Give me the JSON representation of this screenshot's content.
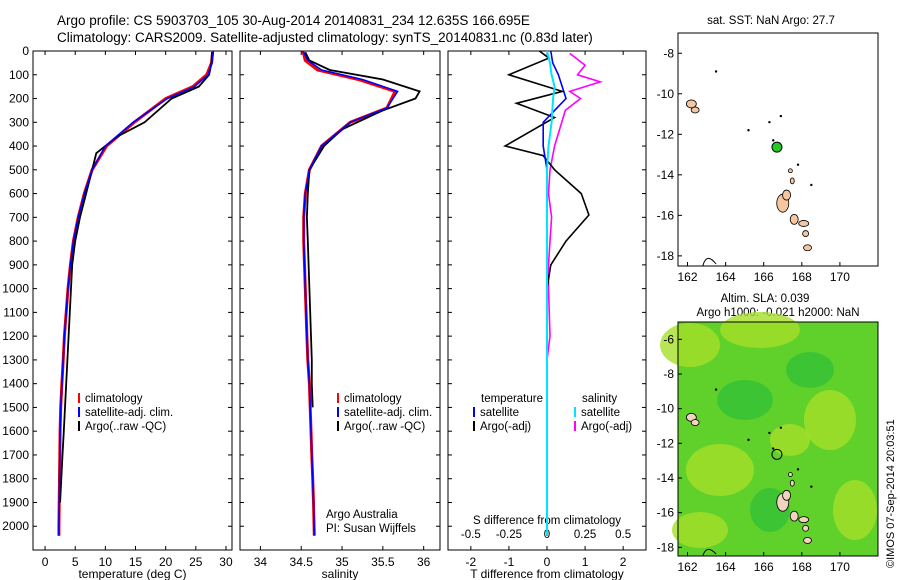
{
  "title_line1": "Argo profile: CS 5903703_105 30-Aug-2014 20140831_234 12.635S 166.695E",
  "title_line2": "Climatology: CARS2009. Satellite-adjusted climatology: synTS_20140831.nc (0.83d later)",
  "depth_ticks": [
    "0",
    "100",
    "200",
    "300",
    "400",
    "500",
    "600",
    "700",
    "800",
    "900",
    "1000",
    "1100",
    "1200",
    "1300",
    "1400",
    "1500",
    "1600",
    "1700",
    "1800",
    "1900",
    "2000"
  ],
  "legend_left": [
    "climatology",
    "satellite-adj. clim.",
    "Argo(..raw -QC)"
  ],
  "legend_mid": [
    "climatology",
    "satellite-adj. clim.",
    "Argo(..raw -QC)"
  ],
  "legend_diff": {
    "temperature": "temperature",
    "salinity": "salinity",
    "satellite": "satellite",
    "argo_adj": "Argo(-adj)"
  },
  "credit_line1": "Argo Australia",
  "credit_line2": "PI: Susan Wijffels",
  "s_diff_label": "S difference from climatology",
  "s_diff_ticks": [
    "-0.5",
    "-0.25",
    "0",
    "0.25",
    "0.5"
  ],
  "map_top_title": "sat. SST: NaN Argo: 27.7",
  "map_bottom_title1": "Altim. SLA: 0.039",
  "map_bottom_title2": "Argo h1000: -0.021 h2000: NaN",
  "footer_stamp": "©IMOS 07-Sep-2014 20:03:51",
  "colors": {
    "climatology": "#ff0000",
    "satellite": "#0000ff",
    "argo": "#000000",
    "sal_sat": "#00e5ff",
    "sal_argo": "#ff00ff",
    "land": "#f5c6a0",
    "sla_green": "#5fd12a"
  },
  "chart_data": [
    {
      "type": "line",
      "xlabel": "temperature (deg C)",
      "ylabel": "",
      "xlim": [
        -2,
        31
      ],
      "ylim": [
        2100,
        0
      ],
      "xticks": [
        0,
        5,
        10,
        15,
        20,
        25,
        30
      ],
      "series": [
        {
          "name": "climatology",
          "x": [
            27.8,
            27.6,
            26.8,
            24.5,
            20.0,
            14.8,
            10.2,
            7.8,
            6.5,
            5.5,
            4.7,
            4.2,
            3.8,
            3.5,
            3.2,
            3.0,
            2.8,
            2.6,
            2.5,
            2.45,
            2.4,
            2.35,
            2.3,
            2.3
          ],
          "y": [
            0,
            50,
            100,
            150,
            200,
            300,
            400,
            500,
            600,
            700,
            800,
            900,
            1000,
            1100,
            1200,
            1300,
            1400,
            1500,
            1600,
            1700,
            1800,
            1900,
            2000,
            2040
          ]
        },
        {
          "name": "satellite-adj. clim.",
          "x": [
            27.9,
            27.7,
            27.0,
            24.8,
            20.3,
            14.6,
            10.0,
            7.8,
            6.5,
            5.5,
            4.7,
            4.2,
            3.8,
            3.5,
            3.2,
            3.0,
            2.8,
            2.6,
            2.5,
            2.45,
            2.4,
            2.35,
            2.3,
            2.3
          ],
          "y": [
            0,
            50,
            100,
            150,
            200,
            300,
            400,
            500,
            600,
            700,
            800,
            900,
            1000,
            1100,
            1200,
            1300,
            1400,
            1500,
            1600,
            1700,
            1800,
            1900,
            2000,
            2040
          ]
        },
        {
          "name": "Argo(..raw -QC)",
          "x": [
            27.7,
            27.6,
            27.2,
            25.5,
            21.0,
            16.5,
            12.0,
            8.5,
            7.8,
            6.8,
            5.8,
            5.0,
            4.5,
            4.3,
            4.1,
            3.9,
            3.7,
            3.5,
            3.3,
            3.1,
            2.9,
            2.7,
            2.5
          ],
          "y": [
            5,
            50,
            100,
            150,
            200,
            300,
            360,
            430,
            500,
            600,
            700,
            800,
            900,
            1000,
            1100,
            1200,
            1300,
            1400,
            1500,
            1600,
            1700,
            1800,
            1900
          ]
        }
      ]
    },
    {
      "type": "line",
      "xlabel": "salinity",
      "ylabel": "",
      "xlim": [
        33.75,
        36.2
      ],
      "ylim": [
        2100,
        0
      ],
      "xticks": [
        34,
        34.5,
        35,
        35.5,
        36
      ],
      "series": [
        {
          "name": "climatology",
          "x": [
            34.52,
            34.55,
            34.7,
            35.2,
            35.65,
            35.55,
            35.1,
            34.75,
            34.6,
            34.55,
            34.53,
            34.53,
            34.54,
            34.55,
            34.56,
            34.57,
            34.58,
            34.6,
            34.61,
            34.62,
            34.63,
            34.64,
            34.65,
            34.66
          ],
          "y": [
            0,
            40,
            80,
            120,
            170,
            240,
            300,
            400,
            500,
            600,
            700,
            800,
            900,
            1000,
            1100,
            1200,
            1300,
            1400,
            1500,
            1600,
            1700,
            1800,
            1900,
            2040
          ]
        },
        {
          "name": "satellite-adj. clim.",
          "x": [
            34.52,
            34.58,
            34.75,
            35.25,
            35.68,
            35.55,
            35.1,
            34.75,
            34.6,
            34.55,
            34.53,
            34.53,
            34.54,
            34.55,
            34.56,
            34.57,
            34.58,
            34.6,
            34.61,
            34.62,
            34.63,
            34.64,
            34.65,
            34.66
          ],
          "y": [
            0,
            40,
            80,
            120,
            170,
            240,
            300,
            400,
            500,
            600,
            700,
            800,
            900,
            1000,
            1100,
            1200,
            1300,
            1400,
            1500,
            1600,
            1700,
            1800,
            1900,
            2040
          ]
        },
        {
          "name": "Argo(..raw -QC)",
          "x": [
            34.55,
            34.6,
            34.85,
            35.5,
            35.95,
            35.9,
            35.5,
            35.0,
            34.78,
            34.6,
            34.58,
            34.57,
            34.58,
            34.59,
            34.6,
            34.61,
            34.62,
            34.63,
            34.63,
            34.64
          ],
          "y": [
            5,
            40,
            80,
            120,
            170,
            200,
            250,
            330,
            400,
            500,
            600,
            700,
            800,
            900,
            1000,
            1100,
            1200,
            1300,
            1400,
            1500
          ]
        }
      ]
    },
    {
      "type": "line",
      "xlabel": "T difference from climatology",
      "ylabel": "",
      "xlim": [
        -2.6,
        2.6
      ],
      "ylim": [
        2100,
        0
      ],
      "xticks": [
        -2,
        -1,
        0,
        1,
        2
      ],
      "series": [
        {
          "name": "satellite",
          "x": [
            0.1,
            0.15,
            0.3,
            0.4,
            0.5,
            0.2,
            -0.1,
            -0.1,
            0,
            0,
            0,
            0,
            0,
            0,
            0,
            0,
            0,
            0,
            0
          ],
          "y": [
            0,
            50,
            100,
            150,
            200,
            250,
            300,
            400,
            500,
            700,
            900,
            1100,
            1300,
            1500,
            1700,
            1800,
            1900,
            2000,
            2040
          ]
        },
        {
          "name": "Argo(-adj)",
          "x": [
            -0.2,
            0.05,
            -1.0,
            0.4,
            -0.8,
            0.2,
            -1.1,
            -0.1,
            0.2,
            0.9,
            1.1,
            0.5,
            0.1,
            0,
            0,
            0,
            0,
            0,
            0,
            0
          ],
          "y": [
            0,
            30,
            100,
            170,
            220,
            280,
            400,
            440,
            500,
            600,
            690,
            800,
            900,
            1000,
            1200,
            1400,
            1600,
            1800,
            1900,
            2040
          ]
        }
      ]
    },
    {
      "type": "line",
      "xlabel": "S difference from climatology",
      "ylabel": "",
      "xlim": [
        -0.65,
        0.65
      ],
      "ylim": [
        2100,
        0
      ],
      "xticks": [
        -0.5,
        -0.25,
        0,
        0.25,
        0.5
      ],
      "series": [
        {
          "name": "satellite",
          "x": [
            0.0,
            0.02,
            0.03,
            0.05,
            0.04,
            0.03,
            0.01,
            0,
            0,
            0,
            0,
            0,
            0,
            0,
            0,
            0,
            0
          ],
          "y": [
            0,
            50,
            100,
            150,
            200,
            300,
            400,
            500,
            700,
            900,
            1100,
            1300,
            1500,
            1700,
            1800,
            1900,
            2040
          ]
        },
        {
          "name": "Argo(-adj)",
          "x": [
            0.15,
            0.25,
            0.2,
            0.35,
            0.15,
            0.22,
            0.12,
            0.05,
            0.02,
            0.01,
            0.03,
            0.02,
            0.01,
            0.01,
            0.02,
            0,
            0
          ],
          "y": [
            10,
            60,
            100,
            130,
            170,
            200,
            250,
            400,
            500,
            600,
            700,
            800,
            900,
            1000,
            1200,
            1300,
            1500
          ]
        }
      ]
    },
    {
      "type": "scatter",
      "title": "sat. SST: NaN Argo: 27.7",
      "xlim": [
        161.5,
        172
      ],
      "ylim": [
        -18.5,
        -7
      ],
      "xticks": [
        162,
        164,
        166,
        168,
        170
      ],
      "yticks": [
        -8,
        -10,
        -12,
        -14,
        -16,
        -18
      ],
      "series": [
        {
          "name": "Argo",
          "x": [
            166.695
          ],
          "y": [
            -12.635
          ]
        }
      ]
    },
    {
      "type": "heatmap",
      "title": "Altim. SLA: 0.039",
      "xlim": [
        161.5,
        172
      ],
      "ylim": [
        -18.5,
        -5
      ],
      "xticks": [
        162,
        164,
        166,
        168,
        170
      ],
      "yticks": [
        -6,
        -8,
        -10,
        -12,
        -14,
        -16,
        -18
      ],
      "series": [
        {
          "name": "Argo",
          "x": [
            166.695
          ],
          "y": [
            -12.635
          ]
        }
      ]
    }
  ]
}
